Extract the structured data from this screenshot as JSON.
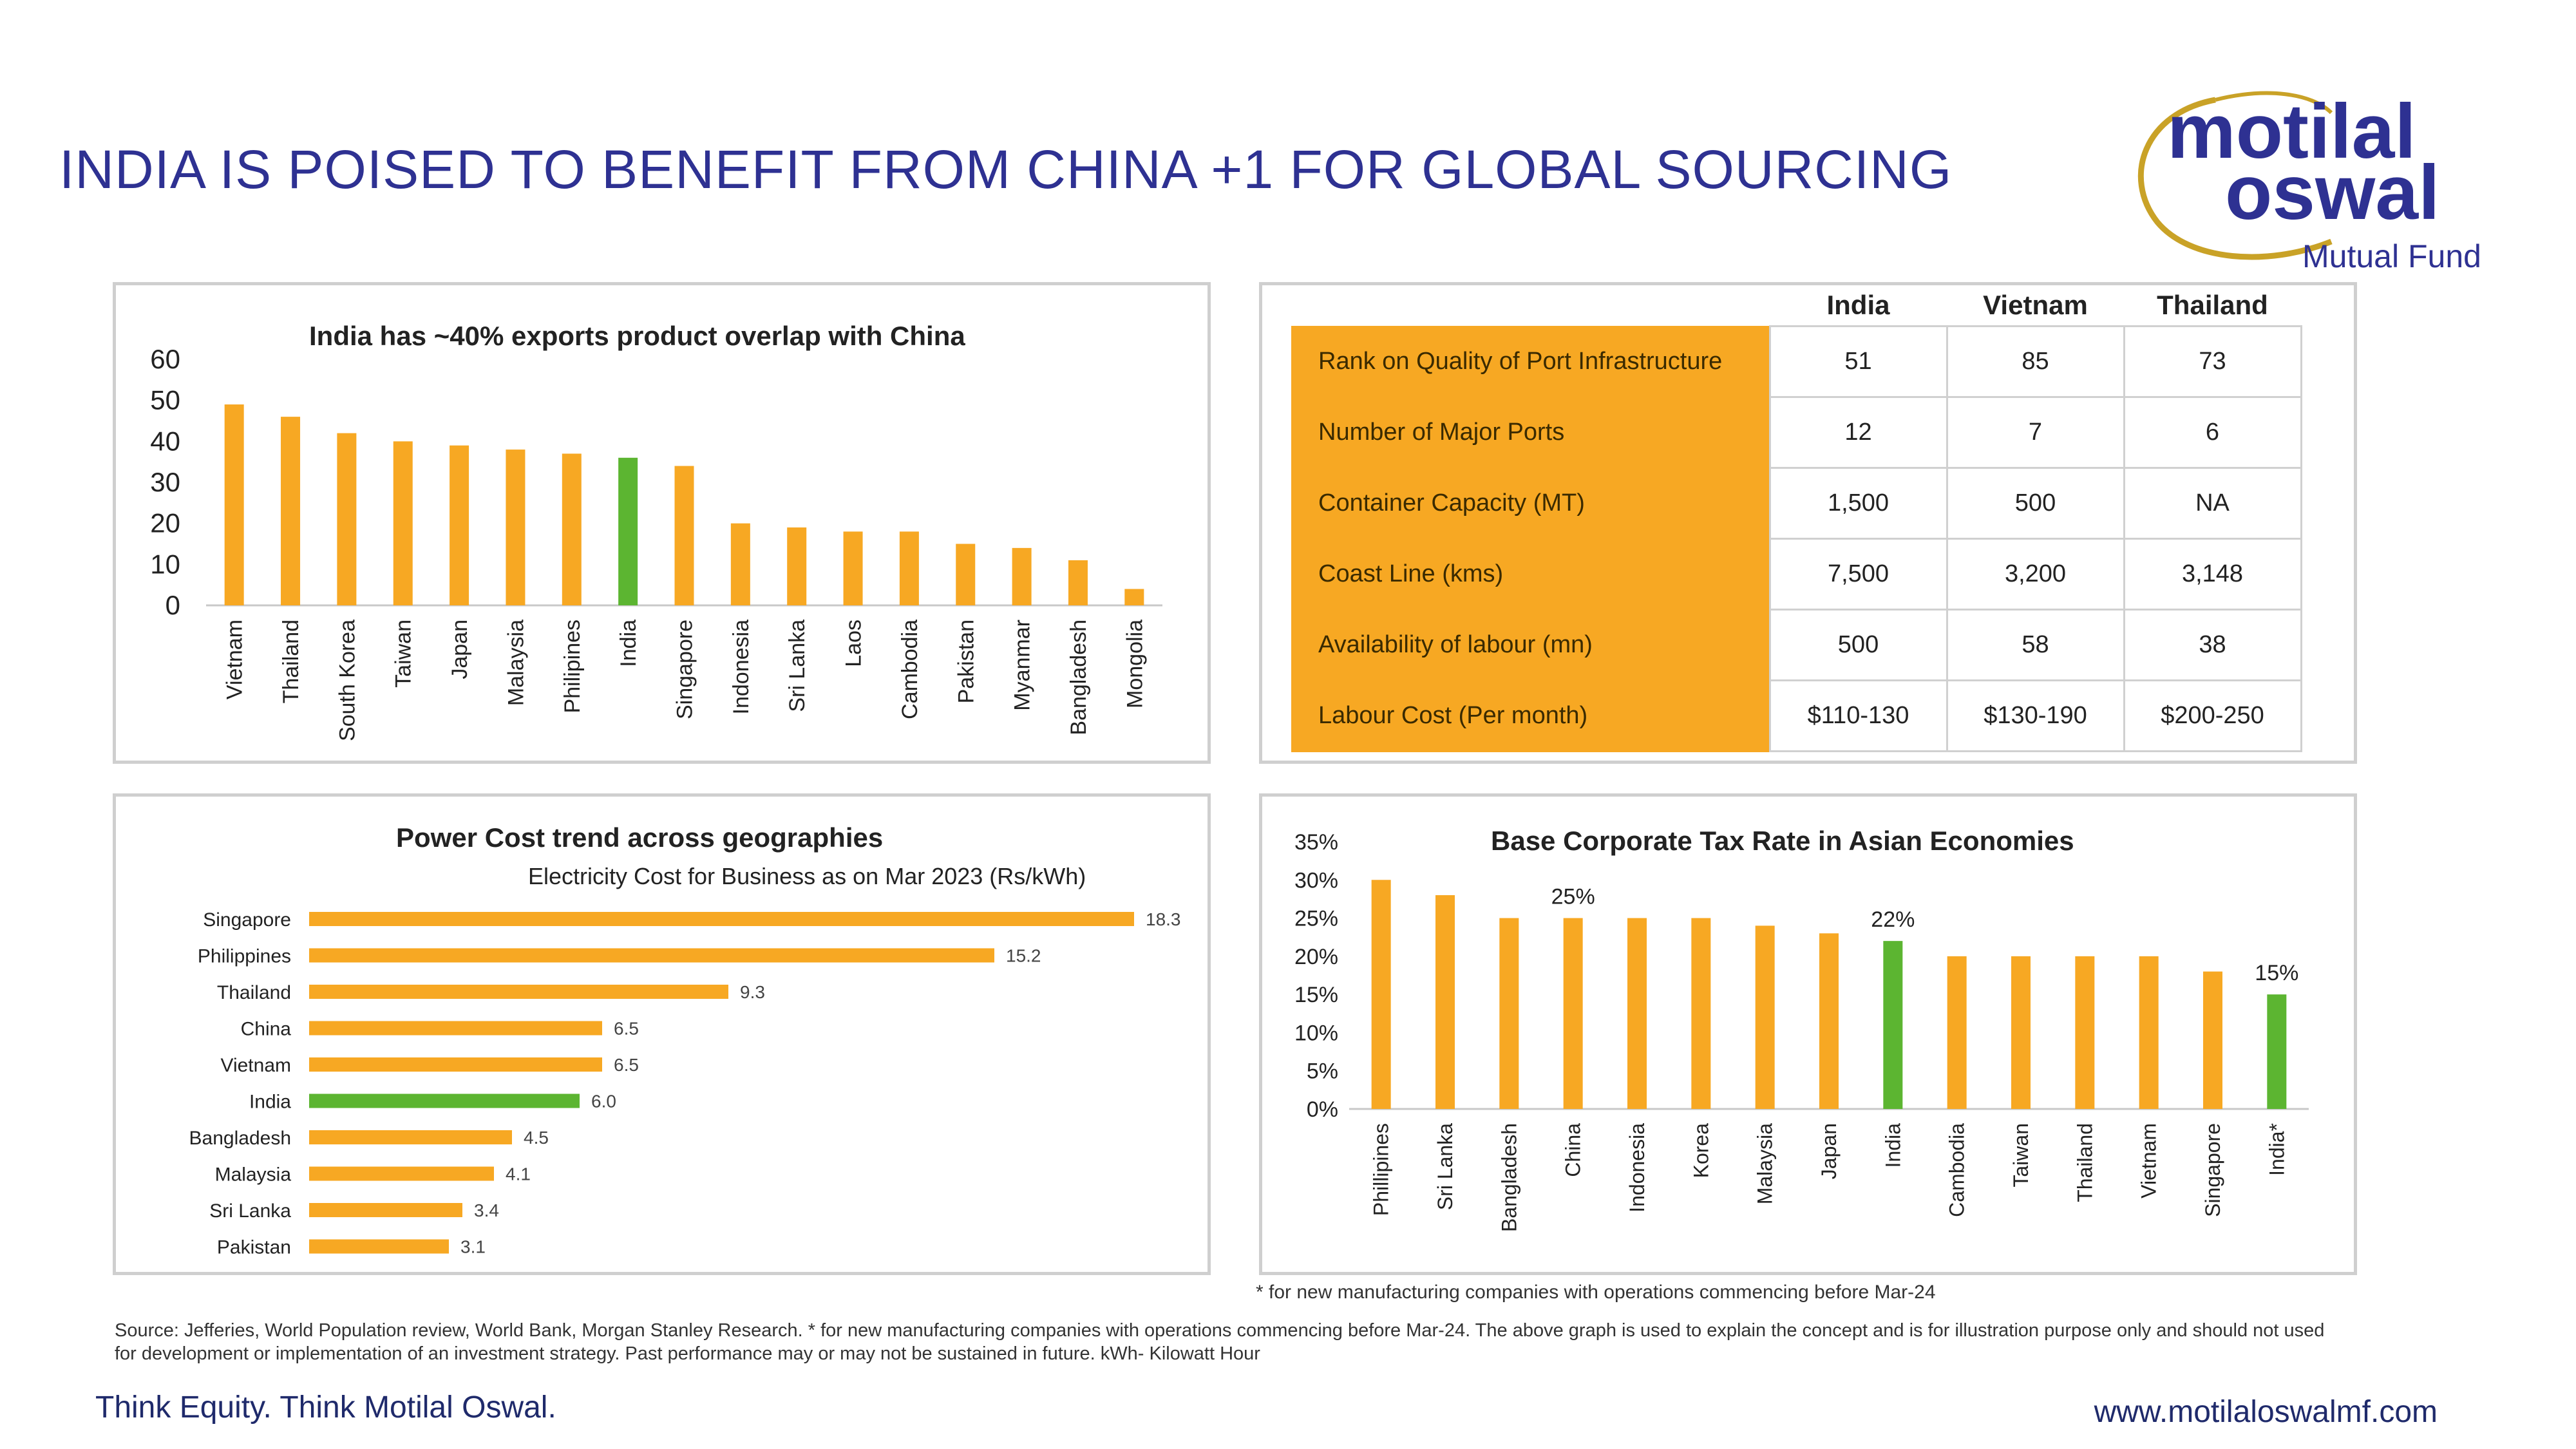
{
  "slide": {
    "title": "INDIA IS POISED TO BENEFIT FROM CHINA +1 FOR GLOBAL SOURCING",
    "logo": {
      "line1": "motilal",
      "line2": "oswal",
      "line3": "Mutual Fund"
    },
    "footnote": "* for new manufacturing companies with operations commencing before Mar-24",
    "source": "Source: Jefferies, World Population review, World Bank, Morgan Stanley Research. * for new manufacturing companies with operations commencing before Mar-24. The above graph is used to explain the concept and is for illustration purpose only and should not used for development or implementation of an investment strategy. Past performance may or may not be sustained in future. kWh- Kilowatt Hour",
    "tagline": "Think Equity. Think Motilal Oswal.",
    "url": "www.motilaloswalmf.com"
  },
  "colors": {
    "orange": "#f7a823",
    "green": "#5cb531",
    "navy": "#2e3192",
    "gold": "#c9a227"
  },
  "chart_data": [
    {
      "type": "bar",
      "title": "India has ~40% exports product overlap with China",
      "categories": [
        "Vietnam",
        "Thailand",
        "South Korea",
        "Taiwan",
        "Japan",
        "Malaysia",
        "Philipines",
        "India",
        "Singapore",
        "Indonesia",
        "Sri Lanka",
        "Laos",
        "Cambodia",
        "Pakistan",
        "Myanmar",
        "Bangladesh",
        "Mongolia"
      ],
      "values": [
        49,
        46,
        42,
        40,
        39,
        38,
        37,
        36,
        34,
        20,
        19,
        18,
        18,
        15,
        14,
        11,
        4
      ],
      "highlight": "India",
      "ylim": [
        0,
        60
      ],
      "yticks": [
        "0",
        "10",
        "20",
        "30",
        "40",
        "50",
        "60"
      ],
      "grid": false
    },
    {
      "type": "table",
      "columns": [
        "India",
        "Vietnam",
        "Thailand"
      ],
      "rows": [
        {
          "label": "Rank on Quality of Port Infrastructure",
          "values": [
            "51",
            "85",
            "73"
          ]
        },
        {
          "label": "Number of Major Ports",
          "values": [
            "12",
            "7",
            "6"
          ]
        },
        {
          "label": "Container Capacity (MT)",
          "values": [
            "1,500",
            "500",
            "NA"
          ]
        },
        {
          "label": "Coast Line (kms)",
          "values": [
            "7,500",
            "3,200",
            "3,148"
          ]
        },
        {
          "label": "Availability of labour (mn)",
          "values": [
            "500",
            "58",
            "38"
          ]
        },
        {
          "label": "Labour Cost (Per month)",
          "values": [
            "$110-130",
            "$130-190",
            "$200-250"
          ]
        }
      ]
    },
    {
      "type": "bar",
      "orientation": "horizontal",
      "title": "Power Cost trend across geographies",
      "subtitle": "Electricity Cost for Business as on Mar 2023 (Rs/kWh)",
      "categories": [
        "Singapore",
        "Philippines",
        "Thailand",
        "China",
        "Vietnam",
        "India",
        "Bangladesh",
        "Malaysia",
        "Sri Lanka",
        "Pakistan"
      ],
      "values": [
        18.3,
        15.2,
        9.3,
        6.5,
        6.5,
        6.0,
        4.5,
        4.1,
        3.4,
        3.1
      ],
      "labels": [
        "18.3",
        "15.2",
        "9.3",
        "6.5",
        "6.5",
        "6.0",
        "4.5",
        "4.1",
        "3.4",
        "3.1"
      ],
      "highlight": "India",
      "xlim": [
        0,
        20
      ]
    },
    {
      "type": "bar",
      "title": "Base Corporate Tax Rate in Asian Economies",
      "categories": [
        "Phillipines",
        "Sri Lanka",
        "Bangladesh",
        "China",
        "Indonesia",
        "Korea",
        "Malaysia",
        "Japan",
        "India",
        "Cambodia",
        "Taiwan",
        "Thailand",
        "Vietnam",
        "Singapore",
        "India*"
      ],
      "values": [
        30,
        28,
        25,
        25,
        25,
        25,
        24,
        23,
        22,
        20,
        20,
        20,
        20,
        18,
        15
      ],
      "data_labels": {
        "China": "25%",
        "India": "22%",
        "India*": "15%"
      },
      "highlight": [
        "India",
        "India*"
      ],
      "ylim": [
        0,
        35
      ],
      "yticks": [
        "0%",
        "5%",
        "10%",
        "15%",
        "20%",
        "25%",
        "30%",
        "35%"
      ]
    }
  ]
}
